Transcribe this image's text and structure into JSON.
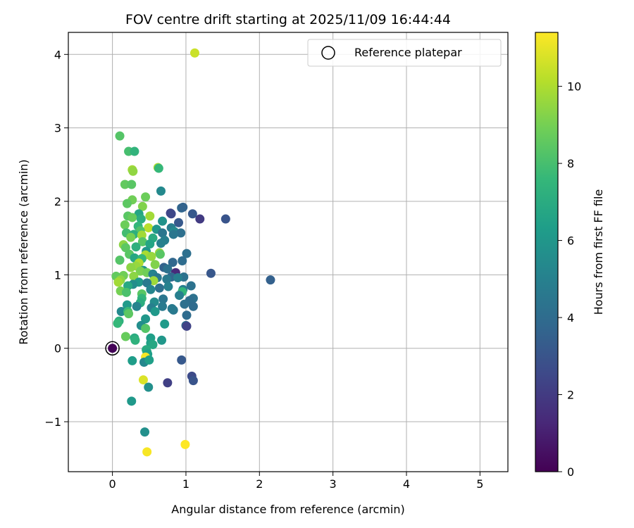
{
  "chart_data": {
    "type": "scatter",
    "title": "FOV centre drift starting at 2025/11/09 16:44:44",
    "xlabel": "Angular distance from reference (arcmin)",
    "ylabel": "Rotation from reference (arcmin)",
    "xlim": [
      -0.6,
      5.38
    ],
    "ylim": [
      -1.68,
      4.3
    ],
    "xticks": [
      0,
      1,
      2,
      3,
      4,
      5
    ],
    "xtick_labels": [
      "0",
      "1",
      "2",
      "3",
      "4",
      "5"
    ],
    "yticks": [
      -1,
      0,
      1,
      2,
      3,
      4
    ],
    "ytick_labels": [
      "−1",
      "0",
      "1",
      "2",
      "3",
      "4"
    ],
    "grid": true,
    "legend": {
      "position": "top-right",
      "label": "Reference platepar"
    },
    "reference_point": {
      "x": 0,
      "y": 0
    },
    "colorbar": {
      "label": "Hours from first FF file",
      "colormap": "viridis",
      "min": 0,
      "max": 11.4,
      "ticks": [
        0,
        2,
        4,
        6,
        8,
        10
      ],
      "tick_labels": [
        "0",
        "2",
        "4",
        "6",
        "8",
        "10"
      ],
      "colors": [
        "#440154",
        "#482878",
        "#3e4989",
        "#31688e",
        "#26828e",
        "#1f9e89",
        "#35b779",
        "#6ece58",
        "#b5de2b",
        "#fde725"
      ]
    },
    "points": [
      [
        1.12,
        4.02,
        10.5
      ],
      [
        0.1,
        2.89,
        8.3
      ],
      [
        0.22,
        2.68,
        8.0
      ],
      [
        0.3,
        2.68,
        7.4
      ],
      [
        0.62,
        2.46,
        10.0
      ],
      [
        0.63,
        2.45,
        7.6
      ],
      [
        0.27,
        2.43,
        9.8
      ],
      [
        0.28,
        2.41,
        9.5
      ],
      [
        0.17,
        2.23,
        8.6
      ],
      [
        0.26,
        2.23,
        8.4
      ],
      [
        0.66,
        2.14,
        5.4
      ],
      [
        0.45,
        2.06,
        8.8
      ],
      [
        0.27,
        2.02,
        8.9
      ],
      [
        0.2,
        1.97,
        8.5
      ],
      [
        0.41,
        1.93,
        9.2
      ],
      [
        0.94,
        1.91,
        3.8
      ],
      [
        0.96,
        1.92,
        3.6
      ],
      [
        0.79,
        1.84,
        2.3
      ],
      [
        0.8,
        1.83,
        2.5
      ],
      [
        1.09,
        1.83,
        3.2
      ],
      [
        0.36,
        1.83,
        6.7
      ],
      [
        0.21,
        1.8,
        8.4
      ],
      [
        0.27,
        1.78,
        8.7
      ],
      [
        0.51,
        1.8,
        9.8
      ],
      [
        0.39,
        1.76,
        7.1
      ],
      [
        1.19,
        1.76,
        2.0
      ],
      [
        1.54,
        1.76,
        3.0
      ],
      [
        0.68,
        1.73,
        5.8
      ],
      [
        0.9,
        1.71,
        3.2
      ],
      [
        0.17,
        1.68,
        8.8
      ],
      [
        0.35,
        1.66,
        7.5
      ],
      [
        0.49,
        1.64,
        10.2
      ],
      [
        0.8,
        1.64,
        4.8
      ],
      [
        0.6,
        1.62,
        6.0
      ],
      [
        0.38,
        1.6,
        8.2
      ],
      [
        0.84,
        1.59,
        5.4
      ],
      [
        0.19,
        1.57,
        7.9
      ],
      [
        0.68,
        1.57,
        4.5
      ],
      [
        0.93,
        1.57,
        4.2
      ],
      [
        0.29,
        1.55,
        7.2
      ],
      [
        0.83,
        1.55,
        4.5
      ],
      [
        0.4,
        1.54,
        9.8
      ],
      [
        0.25,
        1.51,
        9.0
      ],
      [
        0.55,
        1.5,
        7.0
      ],
      [
        0.71,
        1.47,
        4.9
      ],
      [
        0.41,
        1.45,
        8.3
      ],
      [
        0.66,
        1.43,
        5.0
      ],
      [
        0.51,
        1.42,
        6.7
      ],
      [
        0.15,
        1.41,
        9.4
      ],
      [
        0.32,
        1.38,
        7.2
      ],
      [
        0.18,
        1.37,
        8.5
      ],
      [
        0.46,
        1.32,
        6.0
      ],
      [
        0.64,
        1.3,
        9.6
      ],
      [
        0.65,
        1.28,
        8.4
      ],
      [
        1.01,
        1.29,
        4.2
      ],
      [
        0.23,
        1.28,
        8.4
      ],
      [
        0.45,
        1.27,
        9.9
      ],
      [
        0.53,
        1.25,
        9.6
      ],
      [
        0.3,
        1.23,
        6.8
      ],
      [
        0.4,
        1.22,
        7.6
      ],
      [
        0.1,
        1.2,
        8.3
      ],
      [
        0.95,
        1.19,
        4.0
      ],
      [
        0.82,
        1.17,
        3.8
      ],
      [
        0.36,
        1.16,
        10.0
      ],
      [
        0.58,
        1.14,
        9.2
      ],
      [
        0.32,
        1.12,
        9.6
      ],
      [
        0.25,
        1.1,
        9.4
      ],
      [
        0.7,
        1.1,
        3.6
      ],
      [
        0.75,
        1.08,
        4.3
      ],
      [
        0.42,
        1.06,
        5.8
      ],
      [
        0.38,
        1.05,
        9.1
      ],
      [
        0.47,
        1.03,
        8.9
      ],
      [
        0.86,
        1.03,
        1.4
      ],
      [
        1.34,
        1.02,
        3.1
      ],
      [
        0.55,
        1.01,
        5.1
      ],
      [
        0.15,
        0.99,
        8.9
      ],
      [
        0.05,
        0.98,
        8.6
      ],
      [
        0.29,
        0.98,
        9.4
      ],
      [
        0.8,
        0.97,
        3.8
      ],
      [
        0.97,
        0.97,
        4.3
      ],
      [
        0.61,
        0.96,
        4.6
      ],
      [
        0.89,
        0.96,
        4.9
      ],
      [
        0.74,
        0.94,
        4.7
      ],
      [
        0.11,
        0.93,
        9.4
      ],
      [
        2.15,
        0.93,
        3.5
      ],
      [
        0.56,
        0.92,
        9.7
      ],
      [
        0.08,
        0.9,
        9.8
      ],
      [
        0.36,
        0.9,
        6.1
      ],
      [
        0.47,
        0.89,
        4.7
      ],
      [
        0.28,
        0.87,
        5.6
      ],
      [
        0.21,
        0.85,
        6.9
      ],
      [
        0.76,
        0.84,
        5.0
      ],
      [
        1.07,
        0.85,
        4.3
      ],
      [
        0.64,
        0.82,
        4.2
      ],
      [
        0.96,
        0.8,
        4.8
      ],
      [
        0.52,
        0.8,
        5.2
      ],
      [
        0.11,
        0.78,
        9.0
      ],
      [
        0.95,
        0.77,
        7.5
      ],
      [
        0.19,
        0.76,
        8.1
      ],
      [
        0.4,
        0.74,
        8.4
      ],
      [
        0.91,
        0.72,
        4.9
      ],
      [
        1.1,
        0.68,
        4.3
      ],
      [
        0.4,
        0.68,
        7.5
      ],
      [
        0.69,
        0.67,
        4.5
      ],
      [
        1.05,
        0.65,
        4.1
      ],
      [
        0.57,
        0.63,
        5.5
      ],
      [
        0.38,
        0.62,
        7.1
      ],
      [
        0.98,
        0.6,
        4.2
      ],
      [
        0.2,
        0.59,
        6.2
      ],
      [
        0.33,
        0.57,
        5.1
      ],
      [
        0.68,
        0.57,
        4.7
      ],
      [
        1.1,
        0.57,
        4.0
      ],
      [
        0.53,
        0.55,
        4.9
      ],
      [
        0.12,
        0.5,
        5.4
      ],
      [
        0.21,
        0.5,
        7.7
      ],
      [
        0.58,
        0.5,
        6.1
      ],
      [
        0.83,
        0.52,
        4.6
      ],
      [
        0.81,
        0.54,
        4.7
      ],
      [
        0.22,
        0.47,
        8.5
      ],
      [
        1.01,
        0.45,
        4.0
      ],
      [
        0.45,
        0.4,
        6.0
      ],
      [
        0.09,
        0.37,
        7.2
      ],
      [
        0.07,
        0.34,
        7.6
      ],
      [
        0.71,
        0.33,
        6.2
      ],
      [
        0.39,
        0.31,
        5.6
      ],
      [
        1.0,
        0.31,
        3.9
      ],
      [
        1.01,
        0.3,
        2.3
      ],
      [
        0.45,
        0.27,
        8.3
      ],
      [
        0.18,
        0.16,
        8.7
      ],
      [
        0.3,
        0.14,
        7.0
      ],
      [
        0.52,
        0.14,
        6.4
      ],
      [
        0.31,
        0.11,
        7.3
      ],
      [
        0.67,
        0.11,
        6.0
      ],
      [
        0.52,
        0.07,
        6.5
      ],
      [
        0.55,
        0.05,
        6.8
      ],
      [
        0.46,
        -0.02,
        7.0
      ],
      [
        0.47,
        -0.05,
        6.9
      ],
      [
        0.48,
        -0.08,
        6.4
      ],
      [
        0.45,
        -0.12,
        11.3
      ],
      [
        0.27,
        -0.17,
        6.3
      ],
      [
        0.43,
        -0.19,
        5.3
      ],
      [
        0.5,
        -0.16,
        6.4
      ],
      [
        0.94,
        -0.16,
        3.2
      ],
      [
        1.08,
        -0.38,
        2.6
      ],
      [
        1.1,
        -0.44,
        3.0
      ],
      [
        0.42,
        -0.43,
        10.8
      ],
      [
        0.75,
        -0.47,
        2.2
      ],
      [
        0.49,
        -0.53,
        5.7
      ],
      [
        0.26,
        -0.72,
        6.1
      ],
      [
        0.44,
        -1.14,
        5.7
      ],
      [
        0.99,
        -1.31,
        11.4
      ],
      [
        0.47,
        -1.41,
        11.3
      ],
      [
        0.0,
        0.0,
        0.1
      ]
    ]
  }
}
